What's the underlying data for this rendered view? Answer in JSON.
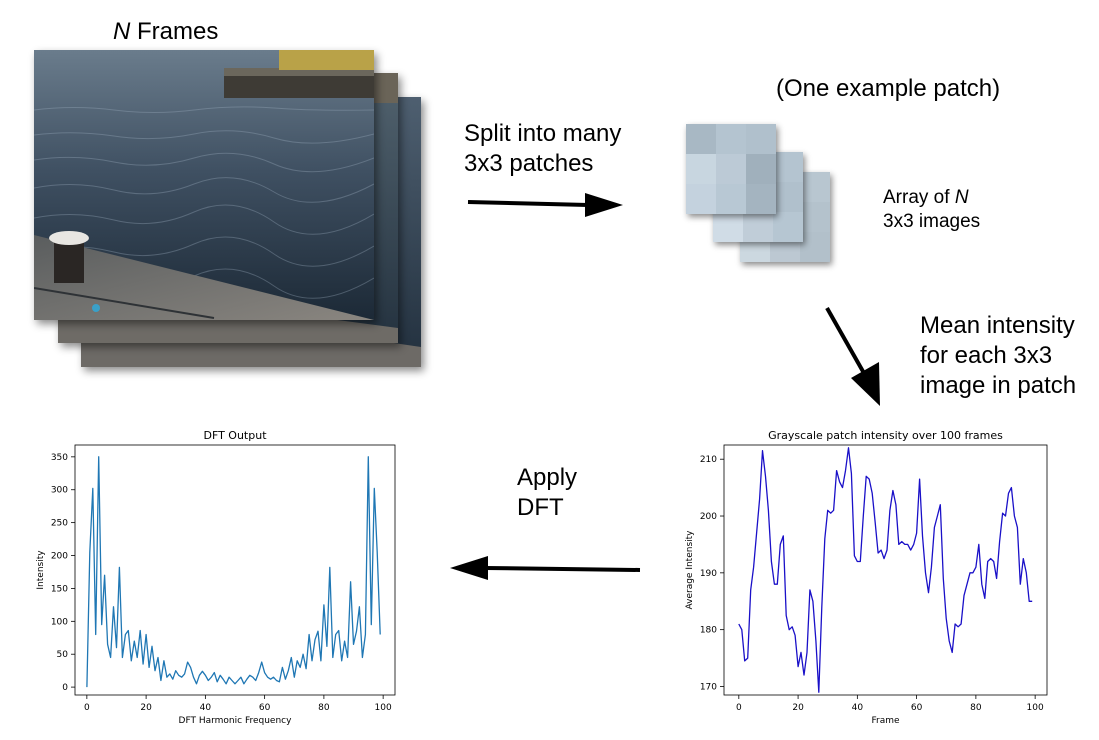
{
  "frames": {
    "title_var": "N",
    "title_rest": " Frames"
  },
  "split_label": [
    "Split into many",
    "3x3 patches"
  ],
  "example_label": "(One example patch)",
  "array_label": {
    "line1_pre": "Array of ",
    "line1_var": "N",
    "line2": "3x3 images"
  },
  "mean_label": [
    "Mean intensity",
    "for each 3x3",
    "image in patch"
  ],
  "dft_label": [
    "Apply",
    "DFT"
  ],
  "colors": {
    "arrow": "#000000",
    "dft_line": "#1f77b4",
    "intensity_line": "#1a10c8",
    "patch_front": [
      "#a8b8c4",
      "#b4c4d0",
      "#b0c0cc",
      "#c8d6e0",
      "#bccad6",
      "#a0b0bc",
      "#c4d2de",
      "#b8c8d4",
      "#a4b4c0"
    ],
    "patch_mid": [
      "#b8c8d4",
      "#c0ced8",
      "#b4c4d0",
      "#ccd8e2",
      "#c4d2dc",
      "#b0c0cc",
      "#d0dce6",
      "#c0cdd8",
      "#b6c6d2"
    ],
    "patch_back": [
      "#bccad4",
      "#c4d0da",
      "#b8c6d0",
      "#c8d4de",
      "#c0ccd6",
      "#b4c2cc",
      "#ccd8e0",
      "#bcc8d2",
      "#b2c0ca"
    ]
  },
  "chart_data": [
    {
      "type": "line",
      "title": "DFT Output",
      "xlabel": "DFT Harmonic Frequency",
      "ylabel": "Intensity",
      "xlim": [
        -4,
        104
      ],
      "ylim": [
        -12,
        368
      ],
      "xticks": [
        0,
        20,
        40,
        60,
        80,
        100
      ],
      "yticks": [
        0,
        50,
        100,
        150,
        200,
        250,
        300,
        350
      ],
      "x": [
        0,
        1,
        2,
        3,
        4,
        5,
        6,
        7,
        8,
        9,
        10,
        11,
        12,
        13,
        14,
        15,
        16,
        17,
        18,
        19,
        20,
        21,
        22,
        23,
        24,
        25,
        26,
        27,
        28,
        29,
        30,
        31,
        32,
        33,
        34,
        35,
        36,
        37,
        38,
        39,
        40,
        41,
        42,
        43,
        44,
        45,
        46,
        47,
        48,
        49,
        50,
        51,
        52,
        53,
        54,
        55,
        56,
        57,
        58,
        59,
        60,
        61,
        62,
        63,
        64,
        65,
        66,
        67,
        68,
        69,
        70,
        71,
        72,
        73,
        74,
        75,
        76,
        77,
        78,
        79,
        80,
        81,
        82,
        83,
        84,
        85,
        86,
        87,
        88,
        89,
        90,
        91,
        92,
        93,
        94,
        95,
        96,
        97,
        98,
        99
      ],
      "y": [
        0,
        205,
        302,
        80,
        350,
        95,
        170,
        65,
        45,
        122,
        60,
        182,
        45,
        80,
        86,
        40,
        70,
        45,
        86,
        35,
        80,
        30,
        62,
        25,
        45,
        10,
        40,
        15,
        20,
        12,
        25,
        18,
        15,
        20,
        38,
        30,
        15,
        5,
        18,
        24,
        18,
        10,
        15,
        22,
        8,
        18,
        12,
        5,
        15,
        10,
        5,
        10,
        15,
        5,
        12,
        18,
        15,
        10,
        22,
        38,
        22,
        15,
        12,
        15,
        10,
        8,
        30,
        12,
        25,
        45,
        15,
        40,
        30,
        50,
        28,
        80,
        40,
        72,
        85,
        40,
        125,
        62,
        182,
        45,
        80,
        86,
        40,
        70,
        45,
        160,
        65,
        85,
        122,
        45,
        80,
        350,
        95,
        302,
        205,
        80
      ]
    },
    {
      "type": "line",
      "title": "Grayscale patch intensity over 100 frames",
      "xlabel": "Frame",
      "ylabel": "Average Intensity",
      "xlim": [
        -5,
        104
      ],
      "ylim": [
        168.5,
        212.5
      ],
      "xticks": [
        0,
        20,
        40,
        60,
        80,
        100
      ],
      "yticks": [
        170,
        180,
        190,
        200,
        210
      ],
      "x": [
        0,
        1,
        2,
        3,
        4,
        5,
        6,
        7,
        8,
        9,
        10,
        11,
        12,
        13,
        14,
        15,
        16,
        17,
        18,
        19,
        20,
        21,
        22,
        23,
        24,
        25,
        26,
        27,
        28,
        29,
        30,
        31,
        32,
        33,
        34,
        35,
        36,
        37,
        38,
        39,
        40,
        41,
        42,
        43,
        44,
        45,
        46,
        47,
        48,
        49,
        50,
        51,
        52,
        53,
        54,
        55,
        56,
        57,
        58,
        59,
        60,
        61,
        62,
        63,
        64,
        65,
        66,
        67,
        68,
        69,
        70,
        71,
        72,
        73,
        74,
        75,
        76,
        77,
        78,
        79,
        80,
        81,
        82,
        83,
        84,
        85,
        86,
        87,
        88,
        89,
        90,
        91,
        92,
        93,
        94,
        95,
        96,
        97,
        98,
        99
      ],
      "y": [
        181,
        180,
        174.5,
        175,
        187,
        191,
        197,
        203,
        211.5,
        207,
        201,
        192,
        188,
        188,
        195,
        196.5,
        182.5,
        180,
        180.5,
        179,
        173.5,
        176,
        172,
        176,
        187,
        185,
        178,
        169,
        184,
        196,
        201,
        200.5,
        201,
        208,
        206,
        205,
        208,
        212,
        207.5,
        193,
        192,
        192,
        200,
        207,
        206.5,
        204,
        199,
        193.5,
        194,
        192.5,
        194,
        201,
        204.5,
        202,
        195,
        195.5,
        195,
        195,
        194,
        195,
        197,
        206.5,
        196.5,
        190,
        186.5,
        191,
        198,
        200,
        202,
        189,
        182,
        178,
        176,
        181,
        180.5,
        181,
        186,
        188,
        190,
        190,
        191,
        195,
        188,
        185.5,
        192,
        192.5,
        192,
        189,
        195.5,
        200.5,
        200,
        204,
        205,
        200,
        198,
        188,
        192.5,
        190,
        185,
        185
      ]
    }
  ]
}
